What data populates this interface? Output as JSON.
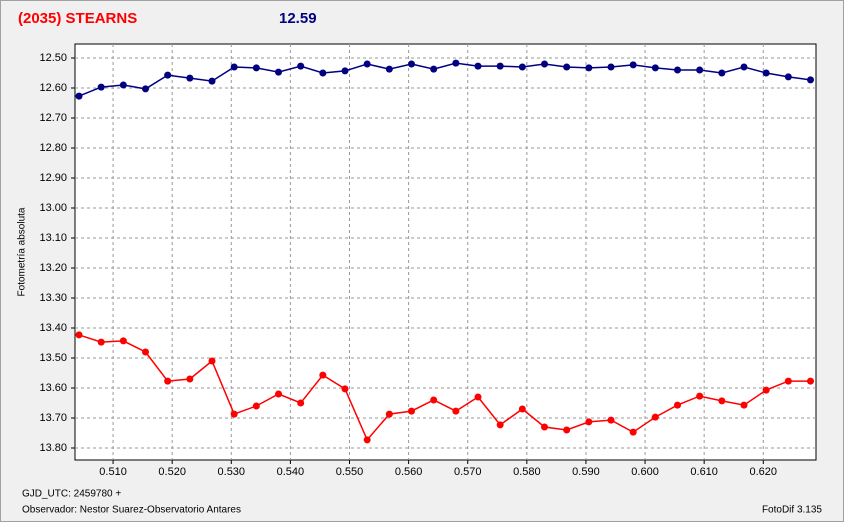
{
  "chart_data": {
    "type": "line",
    "title": "(2035) STEARNS",
    "subtitle": "12.59",
    "ylabel": "Fotometría absoluta",
    "xlabel": "GJD_UTC: 2459780 +",
    "observer": "Observador: Nestor Suarez-Observatorio Antares",
    "software": "FotoDif 3.135",
    "grid": true,
    "x": [
      0.50424,
      0.50799,
      0.51174,
      0.51549,
      0.51924,
      0.52299,
      0.52674,
      0.53049,
      0.53424,
      0.53799,
      0.54174,
      0.54549,
      0.54924,
      0.55299,
      0.55674,
      0.56049,
      0.56424,
      0.56799,
      0.57174,
      0.57549,
      0.57924,
      0.58299,
      0.58674,
      0.59049,
      0.59424,
      0.59799,
      0.60174,
      0.60549,
      0.60924,
      0.61299,
      0.61674,
      0.62049,
      0.62424,
      0.62799
    ],
    "series": [
      {
        "color": "#000080",
        "values": [
          12.627,
          12.597,
          12.59,
          12.603,
          12.557,
          12.567,
          12.577,
          12.53,
          12.533,
          12.547,
          12.527,
          12.55,
          12.543,
          12.52,
          12.537,
          12.52,
          12.537,
          12.517,
          12.527,
          12.527,
          12.53,
          12.52,
          12.53,
          12.533,
          12.53,
          12.523,
          12.533,
          12.54,
          12.54,
          12.55,
          12.53,
          12.55,
          12.563,
          12.573
        ]
      },
      {
        "color": "#ff0000",
        "values": [
          13.423,
          13.447,
          13.443,
          13.48,
          13.577,
          13.57,
          13.51,
          13.687,
          13.66,
          13.62,
          13.65,
          13.557,
          13.603,
          13.773,
          13.687,
          13.677,
          13.64,
          13.677,
          13.63,
          13.723,
          13.67,
          13.73,
          13.74,
          13.713,
          13.707,
          13.747,
          13.697,
          13.657,
          13.627,
          13.643,
          13.657,
          13.607,
          13.577,
          13.577
        ]
      }
    ],
    "xlim": [
      0.50356,
      0.62892
    ],
    "ylim": [
      13.84,
      12.4533
    ],
    "xticks": [
      {
        "value": 0.51,
        "label": "0.510"
      },
      {
        "value": 0.52,
        "label": "0.520"
      },
      {
        "value": 0.53,
        "label": "0.530"
      },
      {
        "value": 0.54,
        "label": "0.540"
      },
      {
        "value": 0.55,
        "label": "0.550"
      },
      {
        "value": 0.56,
        "label": "0.560"
      },
      {
        "value": 0.57,
        "label": "0.570"
      },
      {
        "value": 0.58,
        "label": "0.580"
      },
      {
        "value": 0.59,
        "label": "0.590"
      },
      {
        "value": 0.6,
        "label": "0.600"
      },
      {
        "value": 0.61,
        "label": "0.610"
      },
      {
        "value": 0.62,
        "label": "0.620"
      }
    ],
    "yticks": [
      {
        "value": 12.5,
        "label": "12.50"
      },
      {
        "value": 12.6,
        "label": "12.60"
      },
      {
        "value": 12.7,
        "label": "12.70"
      },
      {
        "value": 12.8,
        "label": "12.80"
      },
      {
        "value": 12.9,
        "label": "12.90"
      },
      {
        "value": 13.0,
        "label": "13.00"
      },
      {
        "value": 13.1,
        "label": "13.10"
      },
      {
        "value": 13.2,
        "label": "13.20"
      },
      {
        "value": 13.3,
        "label": "13.30"
      },
      {
        "value": 13.4,
        "label": "13.40"
      },
      {
        "value": 13.5,
        "label": "13.50"
      },
      {
        "value": 13.6,
        "label": "13.60"
      },
      {
        "value": 13.7,
        "label": "13.70"
      },
      {
        "value": 13.8,
        "label": "13.80"
      }
    ]
  }
}
